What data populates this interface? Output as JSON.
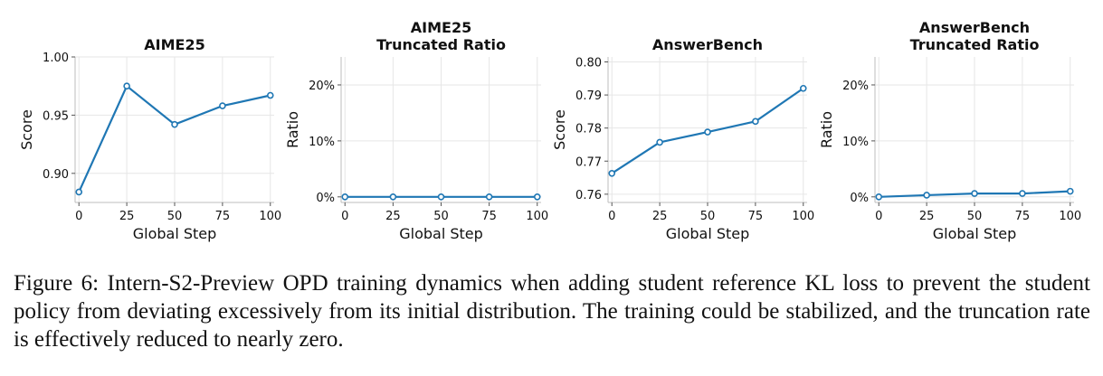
{
  "chart_data": [
    {
      "type": "line",
      "title_lines": [
        "AIME25"
      ],
      "xlabel": "Global Step",
      "ylabel": "Score",
      "x": [
        0,
        25,
        50,
        75,
        100
      ],
      "series": [
        {
          "values": [
            0.884,
            0.975,
            0.942,
            0.958,
            0.967
          ]
        }
      ],
      "xlim": [
        -2,
        102
      ],
      "ylim": [
        0.875,
        1.0
      ],
      "xticks": [
        0,
        25,
        50,
        75,
        100
      ],
      "yticks": [
        0.9,
        0.95,
        1.0
      ],
      "ytick_labels": [
        "0.90",
        "0.95",
        "1.00"
      ],
      "grid": true,
      "color": "#1f77b4"
    },
    {
      "type": "line",
      "title_lines": [
        "AIME25",
        "Truncated Ratio"
      ],
      "xlabel": "Global Step",
      "ylabel": "Ratio",
      "x": [
        0,
        25,
        50,
        75,
        100
      ],
      "series": [
        {
          "values": [
            0,
            0,
            0,
            0,
            0
          ]
        }
      ],
      "xlim": [
        -2,
        102
      ],
      "ylim": [
        -1,
        25
      ],
      "xticks": [
        0,
        25,
        50,
        75,
        100
      ],
      "yticks": [
        0,
        10,
        20
      ],
      "ytick_labels": [
        "0%",
        "10%",
        "20%"
      ],
      "grid": true,
      "color": "#1f77b4"
    },
    {
      "type": "line",
      "title_lines": [
        "AnswerBench"
      ],
      "xlabel": "Global Step",
      "ylabel": "Score",
      "x": [
        0,
        25,
        50,
        75,
        100
      ],
      "series": [
        {
          "values": [
            0.7663,
            0.7757,
            0.7788,
            0.782,
            0.792
          ]
        }
      ],
      "xlim": [
        -2,
        102
      ],
      "ylim": [
        0.7575,
        0.8015
      ],
      "xticks": [
        0,
        25,
        50,
        75,
        100
      ],
      "yticks": [
        0.76,
        0.77,
        0.78,
        0.79,
        0.8
      ],
      "ytick_labels": [
        "0.76",
        "0.77",
        "0.78",
        "0.79",
        "0.80"
      ],
      "grid": true,
      "color": "#1f77b4"
    },
    {
      "type": "line",
      "title_lines": [
        "AnswerBench",
        "Truncated Ratio"
      ],
      "xlabel": "Global Step",
      "ylabel": "Ratio",
      "x": [
        0,
        25,
        50,
        75,
        100
      ],
      "series": [
        {
          "values": [
            0.0,
            0.3,
            0.6,
            0.6,
            1.0
          ]
        }
      ],
      "xlim": [
        -2,
        102
      ],
      "ylim": [
        -1,
        25
      ],
      "xticks": [
        0,
        25,
        50,
        75,
        100
      ],
      "yticks": [
        0,
        10,
        20
      ],
      "ytick_labels": [
        "0%",
        "10%",
        "20%"
      ],
      "grid": true,
      "color": "#1f77b4"
    }
  ],
  "caption": "Figure 6: Intern-S2-Preview OPD training dynamics when adding student reference KL loss to prevent the student policy from deviating excessively from its initial distribution. The training could be stabilized, and the truncation rate is effectively reduced to nearly zero."
}
